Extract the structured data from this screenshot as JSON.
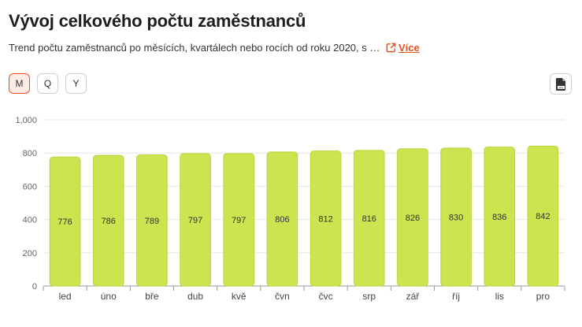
{
  "header": {
    "title": "Vývoj celkového počtu zaměstnanců",
    "subtitle": "Trend počtu zaměstnanců po měsících, kvartálech nebo rocích od roku 2020, s …",
    "more_label": "Více"
  },
  "controls": {
    "periods": [
      {
        "label": "M",
        "active": true
      },
      {
        "label": "Q",
        "active": false
      },
      {
        "label": "Y",
        "active": false
      }
    ],
    "export_icon": "jpg-file-icon"
  },
  "colors": {
    "accent": "#e8501c",
    "bar_fill": "#cde34f",
    "bar_border": "#bcd43f"
  },
  "chart_data": {
    "type": "bar",
    "categories": [
      "led",
      "úno",
      "bře",
      "dub",
      "kvě",
      "čvn",
      "čvc",
      "srp",
      "zář",
      "říj",
      "lis",
      "pro"
    ],
    "values": [
      776,
      786,
      789,
      797,
      797,
      806,
      812,
      816,
      826,
      830,
      836,
      842
    ],
    "title": "",
    "xlabel": "",
    "ylabel": "",
    "ylim": [
      0,
      1000
    ],
    "yticks": [
      "0",
      "200",
      "400",
      "600",
      "800",
      "1,000"
    ],
    "grid": true,
    "data_labels": true
  }
}
